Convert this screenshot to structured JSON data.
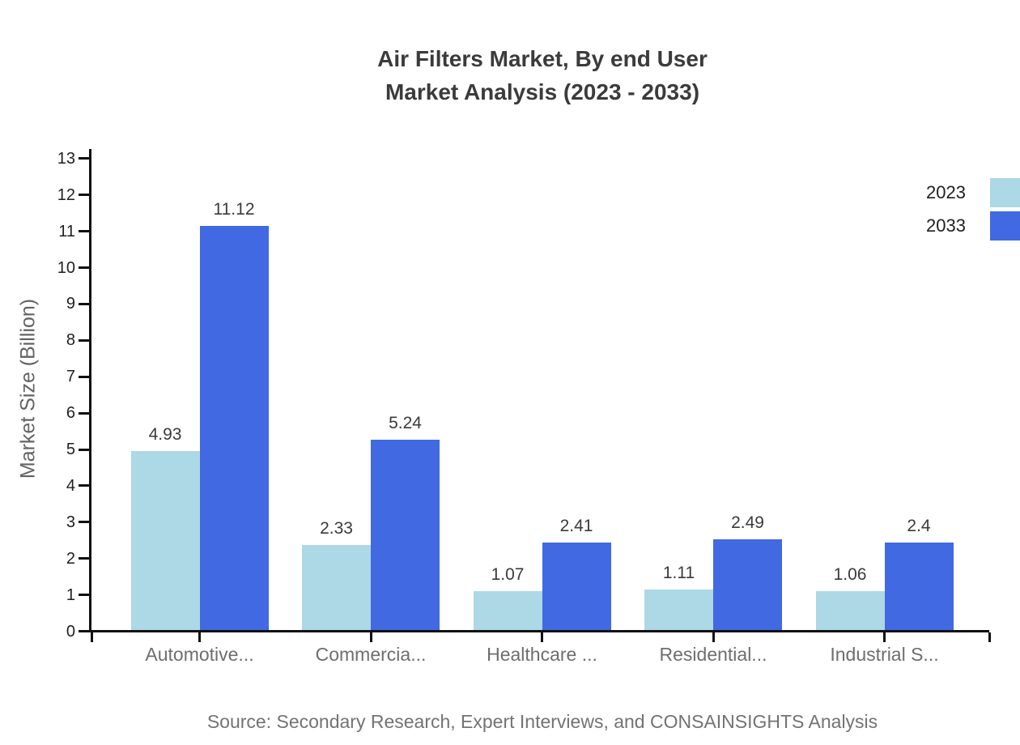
{
  "title": {
    "line1": "Air Filters Market, By end User",
    "line2": "Market Analysis (2023 - 2033)"
  },
  "source": "Source: Secondary Research, Expert Interviews, and CONSAINSIGHTS Analysis",
  "legend": {
    "items": [
      {
        "label": "2023",
        "color": "#ADD8E6"
      },
      {
        "label": "2033",
        "color": "#4169E1"
      }
    ],
    "position": "top-right"
  },
  "colors": {
    "axis": "#111111",
    "title_text": "#3B3B3B",
    "tick_text": "#1F1F1F",
    "category_text": "#6E6E6E",
    "value_text": "#3A3A3A",
    "source_text": "#737373",
    "series_2023": "#ADD8E6",
    "series_2033": "#4169E1",
    "background": "#FFFFFF"
  },
  "chart_data": {
    "type": "bar",
    "title": "Air Filters Market, By end User Market Analysis (2023 - 2033)",
    "categories": [
      "Automotive...",
      "Commercia...",
      "Healthcare ...",
      "Residential...",
      "Industrial S..."
    ],
    "series": [
      {
        "name": "2023",
        "color": "#ADD8E6",
        "values": [
          4.93,
          2.33,
          1.07,
          1.11,
          1.06
        ],
        "value_labels": [
          "4.93",
          "2.33",
          "1.07",
          "1.11",
          "1.06"
        ]
      },
      {
        "name": "2033",
        "color": "#4169E1",
        "values": [
          11.12,
          5.24,
          2.41,
          2.49,
          2.4
        ],
        "value_labels": [
          "11.12",
          "5.24",
          "2.41",
          "2.49",
          "2.4"
        ]
      }
    ],
    "xlabel": "",
    "ylabel": "Market Size (Billion)",
    "ylim": [
      0,
      13
    ],
    "yticks": [
      0,
      1,
      2,
      3,
      4,
      5,
      6,
      7,
      8,
      9,
      10,
      11,
      12,
      13
    ],
    "grid": false,
    "legend_position": "top-right"
  }
}
